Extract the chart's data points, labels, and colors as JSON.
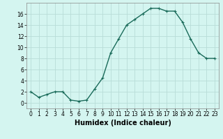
{
  "x": [
    0,
    1,
    2,
    3,
    4,
    5,
    6,
    7,
    8,
    9,
    10,
    11,
    12,
    13,
    14,
    15,
    16,
    17,
    18,
    19,
    20,
    21,
    22,
    23
  ],
  "y": [
    2,
    1,
    1.5,
    2,
    2,
    0.5,
    0.3,
    0.5,
    2.5,
    4.5,
    9,
    11.5,
    14,
    15,
    16,
    17,
    17,
    16.5,
    16.5,
    14.5,
    11.5,
    9,
    8,
    8
  ],
  "line_color": "#1a6b5a",
  "marker": "+",
  "marker_size": 3,
  "bg_color": "#d4f5f0",
  "grid_color": "#b8ddd8",
  "xlabel": "Humidex (Indice chaleur)",
  "xlim": [
    -0.5,
    23.5
  ],
  "ylim": [
    -1,
    18
  ],
  "yticks": [
    0,
    2,
    4,
    6,
    8,
    10,
    12,
    14,
    16
  ],
  "xticks": [
    0,
    1,
    2,
    3,
    4,
    5,
    6,
    7,
    8,
    9,
    10,
    11,
    12,
    13,
    14,
    15,
    16,
    17,
    18,
    19,
    20,
    21,
    22,
    23
  ],
  "tick_labelsize": 5.5,
  "xlabel_fontsize": 7,
  "linewidth": 1.0
}
